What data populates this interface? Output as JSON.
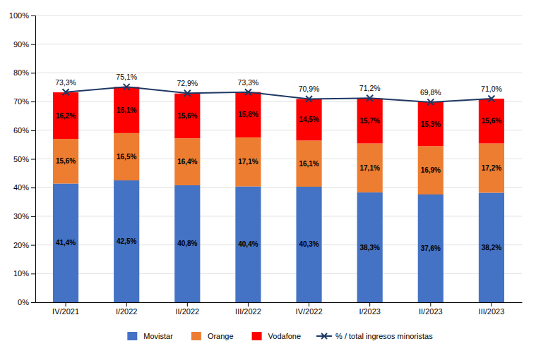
{
  "chart_data": {
    "type": "bar",
    "stacked": true,
    "data_labels": true,
    "grid": true,
    "legend": "bottom",
    "categories": [
      "IV/2021",
      "I/2022",
      "II/2022",
      "III/2022",
      "IV/2022",
      "I/2023",
      "II/2023",
      "III/2023"
    ],
    "series": [
      {
        "name": "Movistar",
        "color": "#4472C4",
        "values": [
          41.4,
          42.5,
          40.8,
          40.4,
          40.3,
          38.3,
          37.6,
          38.2
        ],
        "value_labels": [
          "41,4%",
          "42,5%",
          "40,8%",
          "40,4%",
          "40,3%",
          "38,3%",
          "37,6%",
          "38,2%"
        ]
      },
      {
        "name": "Orange",
        "color": "#ED7D31",
        "values": [
          15.6,
          16.5,
          16.4,
          17.1,
          16.1,
          17.1,
          16.9,
          17.2
        ],
        "value_labels": [
          "15,6%",
          "16,5%",
          "16,4%",
          "17,1%",
          "16,1%",
          "17,1%",
          "16,9%",
          "17,2%"
        ]
      },
      {
        "name": "Vodafone",
        "color": "#FF0000",
        "values": [
          16.2,
          16.1,
          15.6,
          15.8,
          14.5,
          15.7,
          15.3,
          15.6
        ],
        "value_labels": [
          "16,2%",
          "16,1%",
          "15,6%",
          "15,8%",
          "14,5%",
          "15,7%",
          "15,3%",
          "15,6%"
        ]
      },
      {
        "name": "% / total ingresos minoristas",
        "type": "line",
        "color": "#1F3864",
        "marker": "x",
        "values": [
          73.3,
          75.1,
          72.9,
          73.3,
          70.9,
          71.2,
          69.8,
          71.0
        ],
        "value_labels": [
          "73,3%",
          "75,1%",
          "72,9%",
          "73,3%",
          "70,9%",
          "71,2%",
          "69,8%",
          "71,0%"
        ]
      }
    ],
    "ylim": [
      0,
      100
    ],
    "yticks": [
      {
        "value": 0,
        "label": "0%"
      },
      {
        "value": 10,
        "label": "10%"
      },
      {
        "value": 20,
        "label": "20%"
      },
      {
        "value": 30,
        "label": "30%"
      },
      {
        "value": 40,
        "label": "40%"
      },
      {
        "value": 50,
        "label": "50%"
      },
      {
        "value": 60,
        "label": "60%"
      },
      {
        "value": 70,
        "label": "70%"
      },
      {
        "value": 80,
        "label": "80%"
      },
      {
        "value": 90,
        "label": "90%"
      },
      {
        "value": 100,
        "label": "100%"
      }
    ]
  }
}
